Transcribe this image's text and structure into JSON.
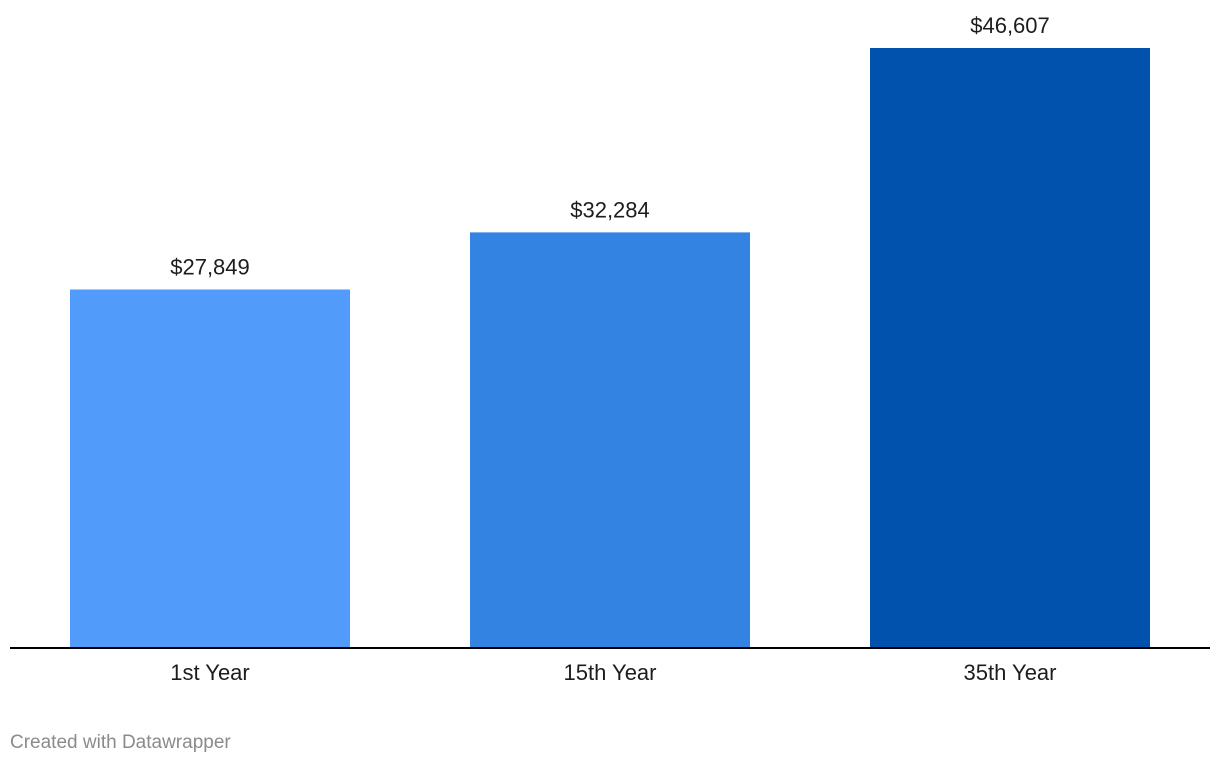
{
  "chart_data": {
    "type": "bar",
    "title": "",
    "xlabel": "",
    "ylabel": "",
    "categories": [
      "1st Year",
      "15th Year",
      "35th Year"
    ],
    "values": [
      27849,
      32284,
      46607
    ],
    "value_labels": [
      "$27,849",
      "$32,284",
      "$46,607"
    ],
    "bar_colors": [
      "#519BFA",
      "#3383E3",
      "#0152AD"
    ],
    "ylim": [
      0,
      46607
    ],
    "grid": false,
    "legend": "none",
    "baseline_color": "#000000"
  },
  "footer": {
    "credit": "Created with Datawrapper"
  }
}
